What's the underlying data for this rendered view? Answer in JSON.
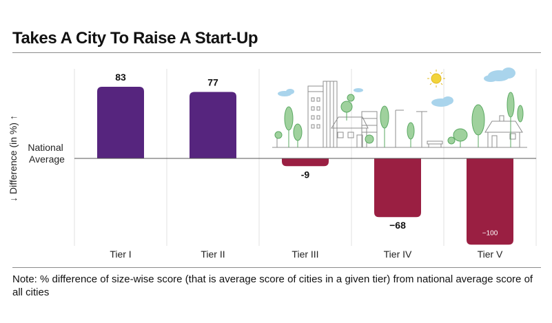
{
  "title": "Takes A City To Raise A Start-Up",
  "note": "Note: % difference of size-wise score (that is average score of cities in a given tier) from national average score of all cities",
  "chart_data": {
    "type": "bar",
    "categories": [
      "Tier I",
      "Tier II",
      "Tier III",
      "Tier IV",
      "Tier V"
    ],
    "values": [
      83,
      77,
      -9,
      -68,
      -100
    ],
    "value_labels": [
      "83",
      "77",
      "-9",
      "−68",
      "−100"
    ],
    "ylabel": "↓  Difference (in %)  ↑",
    "baseline_label": [
      "National",
      "Average"
    ],
    "ylim": [
      -100,
      83
    ],
    "colors": {
      "positive": "#56257e",
      "negative": "#9a1f42",
      "grid": "#e0e0e0",
      "axis": "#555555"
    },
    "grid": true,
    "illustration": "city-skyline-illustration"
  }
}
